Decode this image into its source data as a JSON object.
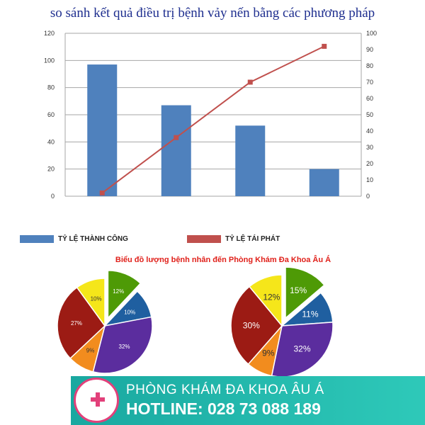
{
  "title": "so sánh kết quả điều trị bệnh vảy nến bằng các phương pháp",
  "chart_data": [
    {
      "type": "bar+line",
      "title": "so sánh kết quả điều trị bệnh vảy nến bằng các phương pháp",
      "categories": [
        "",
        "",
        "",
        ""
      ],
      "series": [
        {
          "name": "TỶ LỆ THÀNH CÔNG",
          "type": "bar",
          "axis": "left",
          "color": "#4f81bd",
          "values": [
            97,
            67,
            52,
            20
          ]
        },
        {
          "name": "TỶ LỆ TÁI PHÁT",
          "type": "line",
          "axis": "right",
          "color": "#c0504d",
          "values": [
            2,
            36,
            70,
            92
          ]
        }
      ],
      "ylim_left": [
        0,
        120
      ],
      "yticks_left": [
        "0",
        "20",
        "40",
        "60",
        "80",
        "100",
        "120"
      ],
      "ylim_right": [
        0,
        100
      ],
      "yticks_right": [
        "0",
        "10",
        "20",
        "30",
        "40",
        "50",
        "60",
        "70",
        "80",
        "90",
        "100"
      ],
      "grid": true,
      "legend": "bottom"
    },
    {
      "type": "pie",
      "title": "Biểu đồ lượng bệnh nhân đến Phòng Khám Đa Khoa Âu Á",
      "pies": [
        {
          "labels": [
            "12%",
            "10%",
            "32%",
            "9%",
            "27%",
            "10%"
          ],
          "values": [
            12,
            10,
            32,
            9,
            27,
            10
          ]
        },
        {
          "labels": [
            "15%",
            "11%",
            "32%",
            "9%",
            "30%",
            "12%"
          ],
          "values": [
            15,
            11,
            32,
            9,
            30,
            12
          ]
        }
      ],
      "colors": [
        "#4e9a06",
        "#1f5fa0",
        "#5b2d9e",
        "#f28c1e",
        "#9c1b14",
        "#f5e61a"
      ]
    }
  ],
  "banner": {
    "name": "PHÒNG KHÁM ĐA KHOA ÂU Á",
    "hotline": "HOTLINE: 028 73 088 189"
  }
}
